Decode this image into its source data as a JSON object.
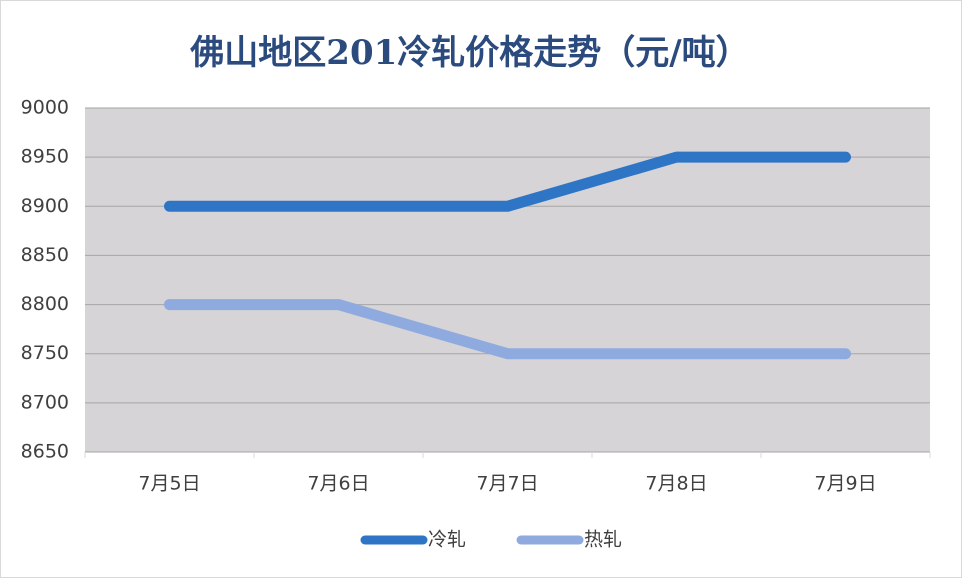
{
  "chart_data": {
    "type": "line",
    "title": "佛山地区201冷轧价格走势（元/吨）",
    "categories": [
      "7月5日",
      "7月6日",
      "7月7日",
      "7月8日",
      "7月9日"
    ],
    "series": [
      {
        "name": "冷轧",
        "color": "#2e75c6",
        "values": [
          8900,
          8900,
          8900,
          8950,
          8950
        ]
      },
      {
        "name": "热轧",
        "color": "#8eaadf",
        "values": [
          8800,
          8800,
          8750,
          8750,
          8750
        ]
      }
    ],
    "ylim": [
      8650,
      9000
    ],
    "yticks": [
      8650,
      8700,
      8750,
      8800,
      8850,
      8900,
      8950,
      9000
    ],
    "grid": true,
    "legend": "bottom"
  }
}
